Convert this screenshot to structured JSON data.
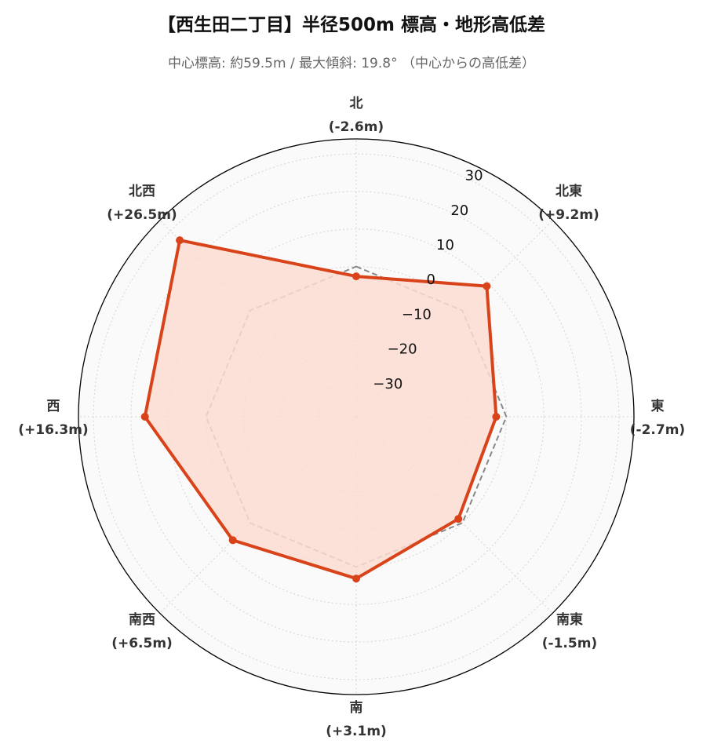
{
  "title": "【西生田二丁目】半径500m 標高・地形高低差",
  "subtitle": "中心標高: 約59.5m / 最大傾斜: 19.8°  （中心からの高低差）",
  "colors": {
    "series_line": "#d9431a",
    "series_fill": "#fcdcd2",
    "reference_line": "#888888",
    "background": "#fafafa",
    "grid": "#d4d4d4"
  },
  "chart_data": {
    "type": "radar",
    "title": "【西生田二丁目】半径500m 標高・地形高低差",
    "categories": [
      "北",
      "北東",
      "東",
      "南東",
      "南",
      "南西",
      "西",
      "北西"
    ],
    "category_values": [
      "(-2.6m)",
      "(+9.2m)",
      "(-2.7m)",
      "(-1.5m)",
      "(+3.1m)",
      "(+6.5m)",
      "(+16.3m)",
      "(+26.5m)"
    ],
    "series": [
      {
        "values": [
          -2.6,
          9.2,
          -2.7,
          -1.5,
          3.1,
          6.5,
          16.3,
          26.5
        ],
        "style": "solid-filled"
      },
      {
        "values": [
          0,
          0,
          0,
          0,
          0,
          0,
          0,
          0
        ],
        "style": "dashed-reference"
      }
    ],
    "r_range": [
      -40,
      34
    ],
    "r_ticks": [
      -30,
      -20,
      -10,
      0,
      10,
      20,
      30
    ],
    "r_tick_labels": [
      "−30",
      "−20",
      "−10",
      "0",
      "10",
      "20",
      "30"
    ],
    "grid": true,
    "legend": "none"
  }
}
